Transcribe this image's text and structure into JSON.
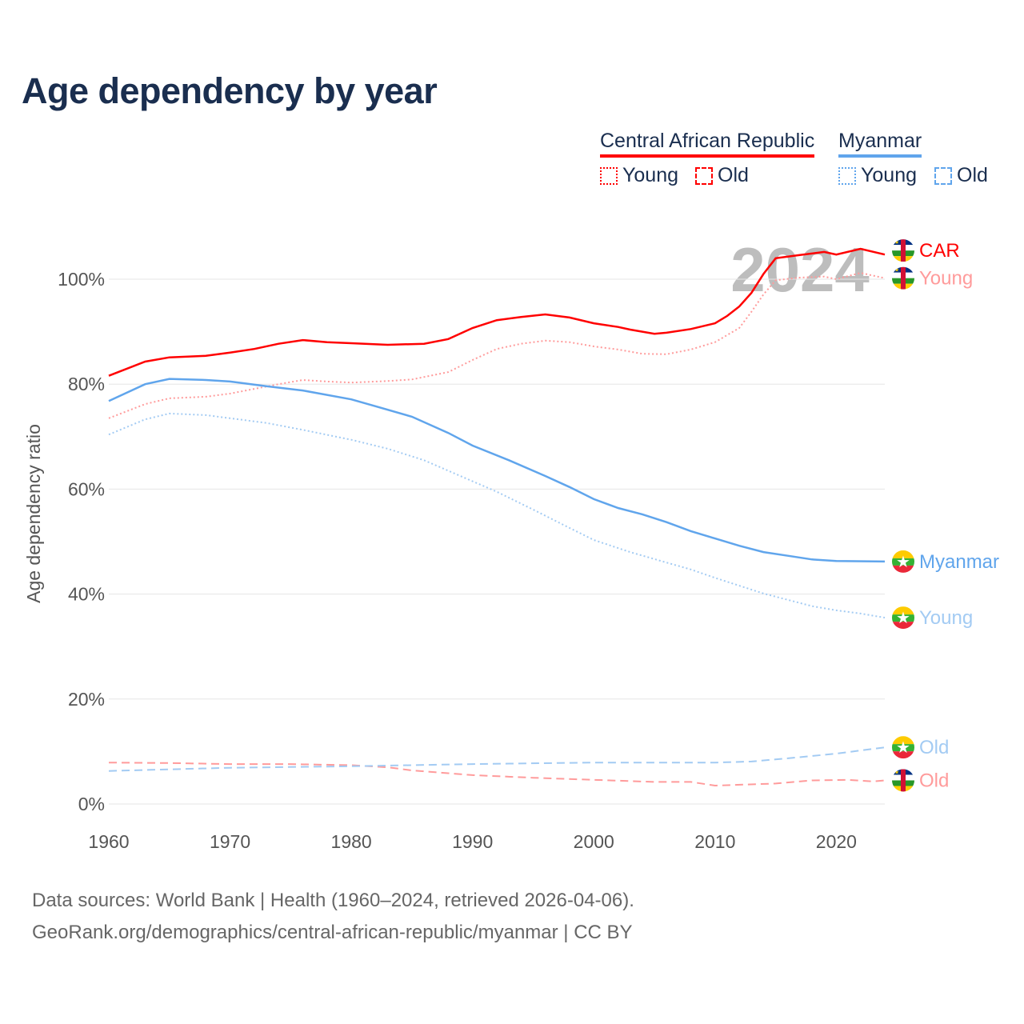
{
  "title": "Age dependency by year",
  "legend": {
    "countries": [
      {
        "name": "Central African Republic",
        "color": "#ff0000",
        "young_label": "Young",
        "old_label": "Old"
      },
      {
        "name": "Myanmar",
        "color": "#60a5ec",
        "young_label": "Young",
        "old_label": "Old"
      }
    ]
  },
  "footer": {
    "line1": "Data sources: World Bank | Health (1960–2024, retrieved 2026-04-06).",
    "line2": "GeoRank.org/demographics/central-african-republic/myanmar | CC BY"
  },
  "chart_data": {
    "type": "line",
    "title": "Age dependency by year",
    "xlabel": "",
    "ylabel": "Age dependency ratio",
    "xlim": [
      1960,
      2024
    ],
    "ylim": [
      0,
      110
    ],
    "x_ticks": [
      "1960",
      "1970",
      "1980",
      "1990",
      "2000",
      "2010",
      "2020"
    ],
    "y_ticks": [
      "0%",
      "20%",
      "40%",
      "60%",
      "80%",
      "100%"
    ],
    "grid": true,
    "year_watermark": "2024",
    "series": [
      {
        "name": "CAR",
        "country": "Central African Republic",
        "kind": "total",
        "color": "#ff0000",
        "style": "solid",
        "end_label": "CAR",
        "x": [
          1960,
          1963,
          1965,
          1968,
          1970,
          1972,
          1974,
          1976,
          1978,
          1980,
          1983,
          1986,
          1988,
          1990,
          1992,
          1994,
          1996,
          1998,
          2000,
          2002,
          2003,
          2005,
          2006,
          2008,
          2010,
          2011,
          2012,
          2013,
          2014,
          2015,
          2017,
          2019,
          2020,
          2022,
          2024
        ],
        "y": [
          81.6,
          84.3,
          85.1,
          85.4,
          86.0,
          86.7,
          87.7,
          88.4,
          88.0,
          87.8,
          87.5,
          87.7,
          88.6,
          90.7,
          92.2,
          92.8,
          93.3,
          92.7,
          91.6,
          90.9,
          90.4,
          89.6,
          89.8,
          90.5,
          91.6,
          93.0,
          94.8,
          97.4,
          101.0,
          104.0,
          104.6,
          105.2,
          104.7,
          105.8,
          104.7
        ]
      },
      {
        "name": "CAR Young",
        "country": "Central African Republic",
        "kind": "young",
        "color": "#ff9b9b",
        "style": "dotted",
        "end_label": "Young",
        "x": [
          1960,
          1963,
          1965,
          1968,
          1970,
          1972,
          1974,
          1976,
          1978,
          1980,
          1983,
          1985,
          1988,
          1990,
          1992,
          1994,
          1996,
          1998,
          2000,
          2002,
          2004,
          2006,
          2008,
          2010,
          2012,
          2013,
          2014,
          2015,
          2017,
          2019,
          2020,
          2022,
          2024
        ],
        "y": [
          73.5,
          76.2,
          77.3,
          77.6,
          78.2,
          79.1,
          80.0,
          80.8,
          80.5,
          80.3,
          80.6,
          80.9,
          82.3,
          84.6,
          86.7,
          87.7,
          88.3,
          88.0,
          87.2,
          86.6,
          85.8,
          85.7,
          86.6,
          88.0,
          90.7,
          93.8,
          97.1,
          99.8,
          100.3,
          100.5,
          100.0,
          101.2,
          100.2
        ]
      },
      {
        "name": "CAR Old",
        "country": "Central African Republic",
        "kind": "old",
        "color": "#ff9b9b",
        "style": "dashed",
        "end_label": "Old",
        "x": [
          1960,
          1965,
          1970,
          1975,
          1980,
          1983,
          1985,
          1990,
          1995,
          2000,
          2005,
          2008,
          2010,
          2015,
          2018,
          2021,
          2023,
          2024
        ],
        "y": [
          7.9,
          7.8,
          7.6,
          7.6,
          7.4,
          7.0,
          6.4,
          5.5,
          5.0,
          4.6,
          4.2,
          4.2,
          3.5,
          3.9,
          4.5,
          4.6,
          4.3,
          4.5
        ]
      },
      {
        "name": "Myanmar",
        "country": "Myanmar",
        "kind": "total",
        "color": "#60a5ec",
        "style": "solid",
        "end_label": "Myanmar",
        "x": [
          1960,
          1963,
          1965,
          1968,
          1970,
          1973,
          1976,
          1980,
          1982,
          1985,
          1988,
          1990,
          1993,
          1996,
          1998,
          2000,
          2002,
          2004,
          2006,
          2008,
          2010,
          2012,
          2014,
          2016,
          2018,
          2020,
          2024
        ],
        "y": [
          76.8,
          80.0,
          81.0,
          80.8,
          80.5,
          79.6,
          78.8,
          77.1,
          75.8,
          73.8,
          70.7,
          68.3,
          65.5,
          62.5,
          60.4,
          58.1,
          56.4,
          55.2,
          53.7,
          52.0,
          50.6,
          49.2,
          48.0,
          47.3,
          46.6,
          46.3,
          46.2
        ]
      },
      {
        "name": "Myanmar Young",
        "country": "Myanmar",
        "kind": "young",
        "color": "#a3cbf3",
        "style": "dotted",
        "end_label": "Young",
        "x": [
          1960,
          1963,
          1965,
          1968,
          1970,
          1973,
          1976,
          1980,
          1983,
          1986,
          1989,
          1992,
          1995,
          1998,
          2000,
          2003,
          2006,
          2008,
          2010,
          2012,
          2014,
          2016,
          2018,
          2020,
          2022,
          2024
        ],
        "y": [
          70.4,
          73.3,
          74.4,
          74.1,
          73.5,
          72.6,
          71.3,
          69.4,
          67.7,
          65.5,
          62.5,
          59.5,
          56.1,
          52.6,
          50.3,
          48.0,
          46.0,
          44.7,
          43.1,
          41.6,
          40.1,
          38.9,
          37.7,
          36.9,
          36.3,
          35.5
        ]
      },
      {
        "name": "Myanmar Old",
        "country": "Myanmar",
        "kind": "old",
        "color": "#a3cbf3",
        "style": "dashed",
        "end_label": "Old",
        "x": [
          1960,
          1970,
          1980,
          1990,
          2000,
          2010,
          2013,
          2016,
          2020,
          2024
        ],
        "y": [
          6.3,
          6.9,
          7.2,
          7.6,
          7.9,
          7.9,
          8.1,
          8.7,
          9.6,
          10.8
        ]
      }
    ]
  }
}
